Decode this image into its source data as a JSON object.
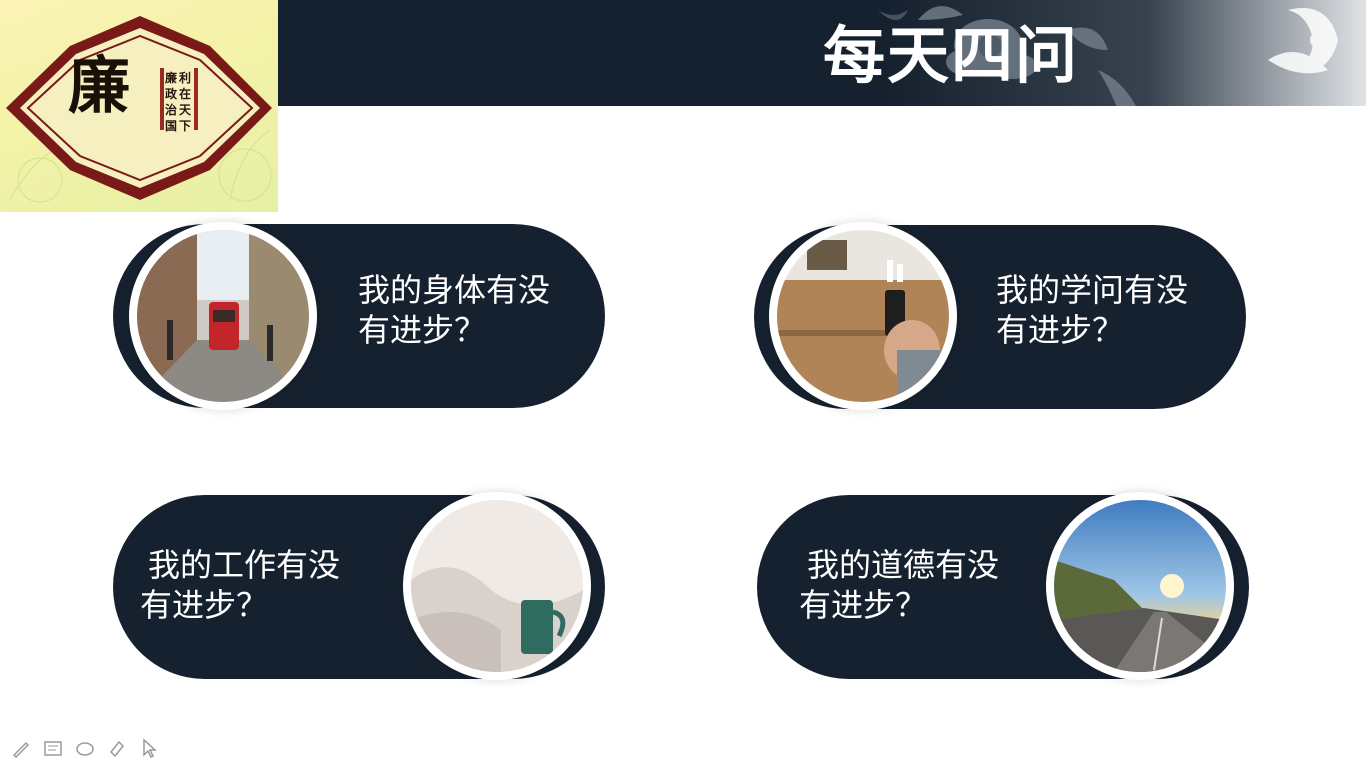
{
  "header": {
    "title": "每天四问"
  },
  "logo": {
    "main_char": "廉",
    "column_1": "利在天下",
    "column_2": "廉政治国"
  },
  "questions": [
    {
      "line1": "我的身体有没",
      "line2": "有进步？",
      "photo": "street-tram-photo"
    },
    {
      "line1": "我的学问有没",
      "line2": "有进步？",
      "photo": "desk-phone-photo"
    },
    {
      "line1": "我的工作有没",
      "line2": "有进步？",
      "photo": "cup-bed-photo"
    },
    {
      "line1": "我的道德有没",
      "line2": "有进步？",
      "photo": "road-sunset-photo"
    }
  ],
  "toolbar": {
    "tools": [
      "pen-icon",
      "text-box-icon",
      "eraser-icon",
      "highlighter-icon",
      "pointer-arrow-icon"
    ]
  },
  "colors": {
    "navy": "#16212f",
    "logo_bg": "#f4f2a8",
    "logo_frame": "#7a1a18",
    "white": "#ffffff"
  }
}
